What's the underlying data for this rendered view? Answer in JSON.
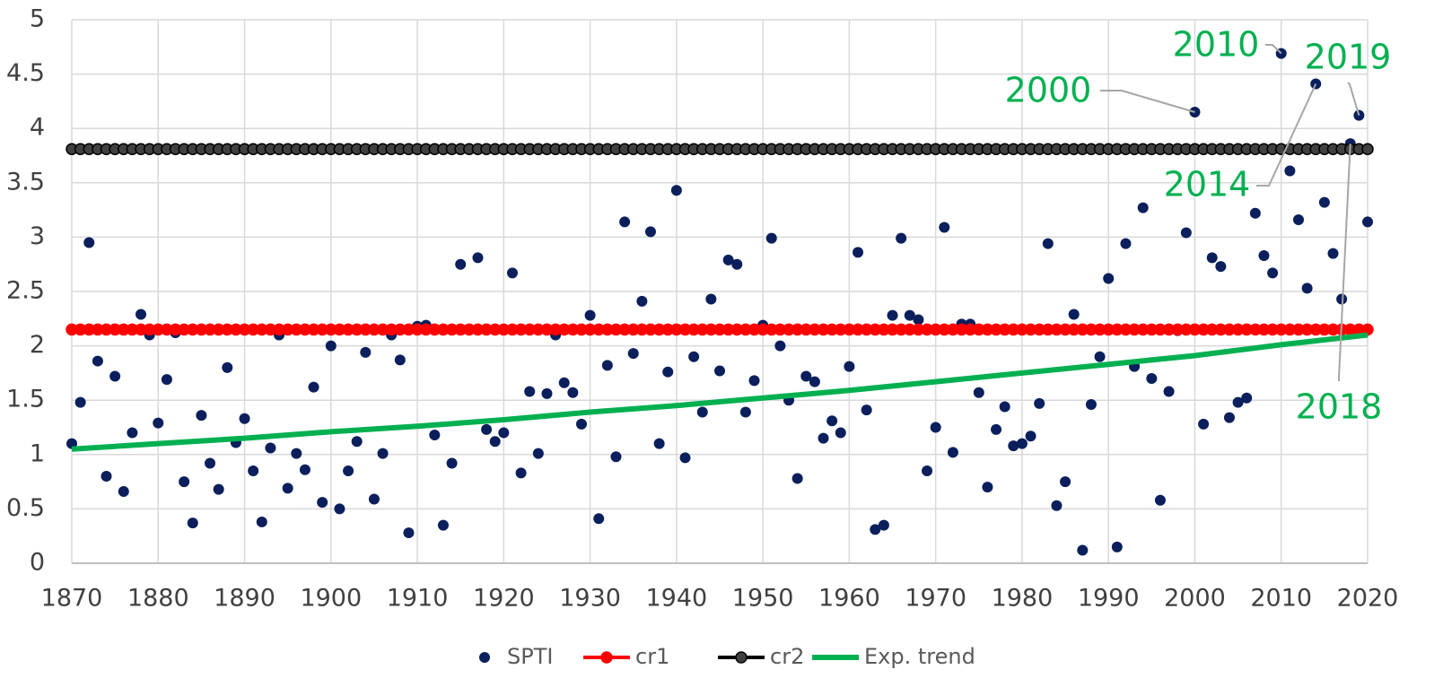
{
  "chart_data": {
    "type": "scatter",
    "x": [
      1870,
      1871,
      1872,
      1873,
      1874,
      1875,
      1876,
      1877,
      1878,
      1879,
      1880,
      1881,
      1882,
      1883,
      1884,
      1885,
      1886,
      1887,
      1888,
      1889,
      1890,
      1891,
      1892,
      1893,
      1894,
      1895,
      1896,
      1897,
      1898,
      1899,
      1900,
      1901,
      1902,
      1903,
      1904,
      1905,
      1906,
      1907,
      1908,
      1909,
      1910,
      1911,
      1912,
      1913,
      1914,
      1915,
      1916,
      1917,
      1918,
      1919,
      1920,
      1921,
      1922,
      1923,
      1924,
      1925,
      1926,
      1927,
      1928,
      1929,
      1930,
      1931,
      1932,
      1933,
      1934,
      1935,
      1936,
      1937,
      1938,
      1939,
      1940,
      1941,
      1942,
      1943,
      1944,
      1945,
      1946,
      1947,
      1948,
      1949,
      1950,
      1951,
      1952,
      1953,
      1954,
      1955,
      1956,
      1957,
      1958,
      1959,
      1960,
      1961,
      1962,
      1963,
      1964,
      1965,
      1966,
      1967,
      1968,
      1969,
      1970,
      1971,
      1972,
      1973,
      1974,
      1975,
      1976,
      1977,
      1978,
      1979,
      1980,
      1981,
      1982,
      1983,
      1984,
      1985,
      1986,
      1987,
      1988,
      1989,
      1990,
      1991,
      1992,
      1993,
      1994,
      1995,
      1996,
      1997,
      1998,
      1999,
      2000,
      2001,
      2002,
      2003,
      2004,
      2005,
      2006,
      2007,
      2008,
      2009,
      2010,
      2011,
      2012,
      2013,
      2014,
      2015,
      2016,
      2017,
      2018,
      2019,
      2020
    ],
    "series": [
      {
        "name": "SPTI",
        "color": "#0a1f5c",
        "mode": "markers",
        "values": [
          1.1,
          1.48,
          2.95,
          1.86,
          0.8,
          1.72,
          0.66,
          1.2,
          2.29,
          2.1,
          1.29,
          1.69,
          2.12,
          0.75,
          0.37,
          1.36,
          0.92,
          0.68,
          1.8,
          1.11,
          1.33,
          0.85,
          0.38,
          1.06,
          2.1,
          0.69,
          1.01,
          0.86,
          1.62,
          0.56,
          2.0,
          0.5,
          0.85,
          1.12,
          1.94,
          0.59,
          1.01,
          2.1,
          1.87,
          0.28,
          2.18,
          2.19,
          1.18,
          0.35,
          0.92,
          2.75,
          2.15,
          2.81,
          1.23,
          1.12,
          1.2,
          2.67,
          0.83,
          1.58,
          1.01,
          1.56,
          2.1,
          1.66,
          1.57,
          1.28,
          2.28,
          0.41,
          1.82,
          0.98,
          3.14,
          1.93,
          2.41,
          3.05,
          1.1,
          1.76,
          3.43,
          0.97,
          1.9,
          1.39,
          2.43,
          1.77,
          2.79,
          2.75,
          1.39,
          1.68,
          2.19,
          2.99,
          2.0,
          1.5,
          0.78,
          1.72,
          1.67,
          1.15,
          1.31,
          1.2,
          1.81,
          2.86,
          1.41,
          0.31,
          0.35,
          2.28,
          2.99,
          2.28,
          2.24,
          0.85,
          1.25,
          3.09,
          1.02,
          2.2,
          2.2,
          1.57,
          0.7,
          1.23,
          1.44,
          1.08,
          1.1,
          1.17,
          1.47,
          2.94,
          0.53,
          0.75,
          2.29,
          0.12,
          1.46,
          1.9,
          2.62,
          0.15,
          2.94,
          1.81,
          3.27,
          1.7,
          0.58,
          1.58,
          2.14,
          3.04,
          4.15,
          1.28,
          2.81,
          2.73,
          1.34,
          1.48,
          1.52,
          3.22,
          2.83,
          2.67,
          4.69,
          3.61,
          3.16,
          2.53,
          4.41,
          3.32,
          2.85,
          2.43,
          3.86,
          4.12,
          3.14
        ]
      },
      {
        "name": "cr1",
        "color": "#ff0000",
        "marker_color": "#ff0000",
        "mode": "lines+markers",
        "values": [
          2.15,
          2.15,
          2.15,
          2.15,
          2.15,
          2.15,
          2.15,
          2.15,
          2.15,
          2.15,
          2.15,
          2.15,
          2.15,
          2.15,
          2.15,
          2.15,
          2.15,
          2.15,
          2.15,
          2.15,
          2.15,
          2.15,
          2.15,
          2.15,
          2.15,
          2.15,
          2.15,
          2.15,
          2.15,
          2.15,
          2.15,
          2.15,
          2.15,
          2.15,
          2.15,
          2.15,
          2.15,
          2.15,
          2.15,
          2.15,
          2.15,
          2.15,
          2.15,
          2.15,
          2.15,
          2.15,
          2.15,
          2.15,
          2.15,
          2.15,
          2.15,
          2.15,
          2.15,
          2.15,
          2.15,
          2.15,
          2.15,
          2.15,
          2.15,
          2.15,
          2.15,
          2.15,
          2.15,
          2.15,
          2.15,
          2.15,
          2.15,
          2.15,
          2.15,
          2.15,
          2.15,
          2.15,
          2.15,
          2.15,
          2.15,
          2.15,
          2.15,
          2.15,
          2.15,
          2.15,
          2.15,
          2.15,
          2.15,
          2.15,
          2.15,
          2.15,
          2.15,
          2.15,
          2.15,
          2.15,
          2.15,
          2.15,
          2.15,
          2.15,
          2.15,
          2.15,
          2.15,
          2.15,
          2.15,
          2.15,
          2.15,
          2.15,
          2.15,
          2.15,
          2.15,
          2.15,
          2.15,
          2.15,
          2.15,
          2.15,
          2.15,
          2.15,
          2.15,
          2.15,
          2.15,
          2.15,
          2.15,
          2.15,
          2.15,
          2.15,
          2.15,
          2.15,
          2.15,
          2.15,
          2.15,
          2.15,
          2.15,
          2.15,
          2.15,
          2.15,
          2.15,
          2.15,
          2.15,
          2.15,
          2.15,
          2.15,
          2.15,
          2.15,
          2.15,
          2.15,
          2.15,
          2.15,
          2.15,
          2.15,
          2.15,
          2.15,
          2.15,
          2.15,
          2.15,
          2.15,
          2.15
        ]
      },
      {
        "name": "cr2",
        "color": "#000000",
        "marker_color": "#404040",
        "mode": "lines+markers",
        "values": [
          3.81,
          3.81,
          3.81,
          3.81,
          3.81,
          3.81,
          3.81,
          3.81,
          3.81,
          3.81,
          3.81,
          3.81,
          3.81,
          3.81,
          3.81,
          3.81,
          3.81,
          3.81,
          3.81,
          3.81,
          3.81,
          3.81,
          3.81,
          3.81,
          3.81,
          3.81,
          3.81,
          3.81,
          3.81,
          3.81,
          3.81,
          3.81,
          3.81,
          3.81,
          3.81,
          3.81,
          3.81,
          3.81,
          3.81,
          3.81,
          3.81,
          3.81,
          3.81,
          3.81,
          3.81,
          3.81,
          3.81,
          3.81,
          3.81,
          3.81,
          3.81,
          3.81,
          3.81,
          3.81,
          3.81,
          3.81,
          3.81,
          3.81,
          3.81,
          3.81,
          3.81,
          3.81,
          3.81,
          3.81,
          3.81,
          3.81,
          3.81,
          3.81,
          3.81,
          3.81,
          3.81,
          3.81,
          3.81,
          3.81,
          3.81,
          3.81,
          3.81,
          3.81,
          3.81,
          3.81,
          3.81,
          3.81,
          3.81,
          3.81,
          3.81,
          3.81,
          3.81,
          3.81,
          3.81,
          3.81,
          3.81,
          3.81,
          3.81,
          3.81,
          3.81,
          3.81,
          3.81,
          3.81,
          3.81,
          3.81,
          3.81,
          3.81,
          3.81,
          3.81,
          3.81,
          3.81,
          3.81,
          3.81,
          3.81,
          3.81,
          3.81,
          3.81,
          3.81,
          3.81,
          3.81,
          3.81,
          3.81,
          3.81,
          3.81,
          3.81,
          3.81,
          3.81,
          3.81,
          3.81,
          3.81,
          3.81,
          3.81,
          3.81,
          3.81,
          3.81,
          3.81,
          3.81,
          3.81,
          3.81,
          3.81,
          3.81,
          3.81,
          3.81,
          3.81,
          3.81,
          3.81,
          3.81,
          3.81,
          3.81,
          3.81,
          3.81,
          3.81,
          3.81,
          3.81,
          3.81,
          3.81
        ]
      },
      {
        "name": "Exp. trend",
        "color": "#00b050",
        "mode": "lines",
        "x": [
          1870,
          1880,
          1890,
          1900,
          1910,
          1920,
          1930,
          1940,
          1950,
          1960,
          1970,
          1980,
          1990,
          2000,
          2010,
          2020
        ],
        "values": [
          1.05,
          1.1,
          1.15,
          1.21,
          1.26,
          1.32,
          1.39,
          1.45,
          1.52,
          1.59,
          1.67,
          1.75,
          1.83,
          1.91,
          2.01,
          2.1
        ]
      }
    ],
    "xlim": [
      1870,
      2020
    ],
    "ylim": [
      0,
      5
    ],
    "xticks": [
      1870,
      1880,
      1890,
      1900,
      1910,
      1920,
      1930,
      1940,
      1950,
      1960,
      1970,
      1980,
      1990,
      2000,
      2010,
      2020
    ],
    "yticks": [
      0,
      0.5,
      1,
      1.5,
      2,
      2.5,
      3,
      3.5,
      4,
      4.5,
      5
    ],
    "grid": true,
    "legend": "bottom",
    "annotations": [
      "2000",
      "2010",
      "2014",
      "2018",
      "2019"
    ],
    "annotation_color": "#00b050"
  }
}
